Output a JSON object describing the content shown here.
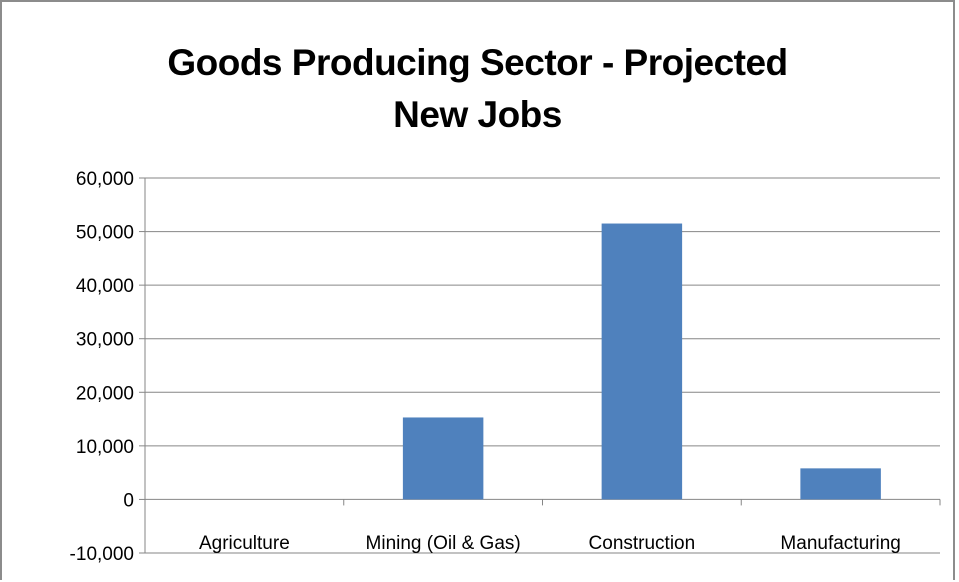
{
  "chart_data": {
    "type": "bar",
    "title_lines": [
      "Goods Producing Sector - Projected",
      "New Jobs"
    ],
    "categories": [
      "Agriculture",
      "Mining (Oil & Gas)",
      "Construction",
      "Manufacturing"
    ],
    "series": [
      {
        "values": [
          0,
          15300,
          51500,
          5800
        ]
      }
    ],
    "ylim": [
      -10000,
      60000
    ],
    "y_ticks": [
      60000,
      50000,
      40000,
      30000,
      20000,
      10000,
      0,
      -10000
    ],
    "y_tick_labels": [
      "60,000",
      "50,000",
      "40,000",
      "30,000",
      "20,000",
      "10,000",
      "0",
      "-10,000"
    ],
    "grid": true,
    "legend": "none",
    "bar_color": "#4f81bd",
    "grid_color": "#868686",
    "axis_color": "#868686"
  }
}
